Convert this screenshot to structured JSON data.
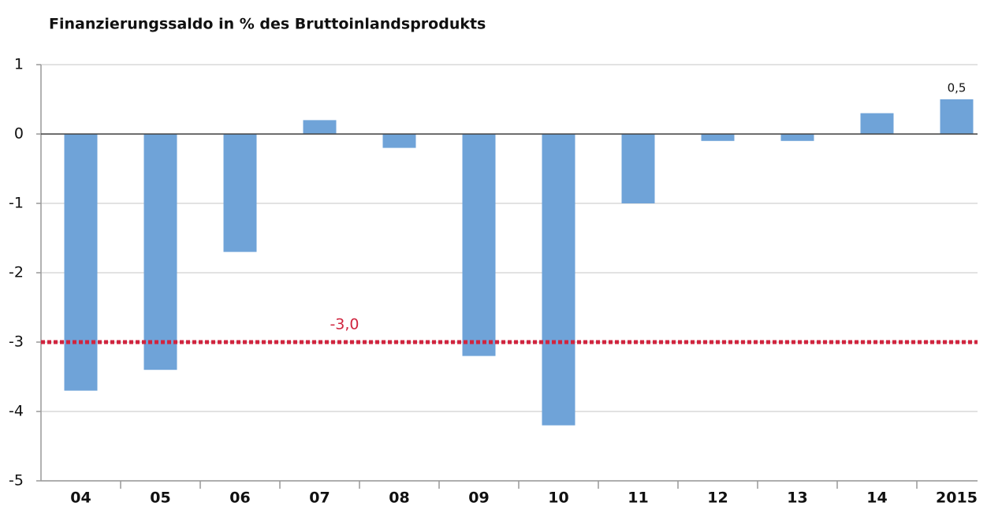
{
  "chart_data": {
    "type": "bar",
    "title": "Finanzierungssaldo in % des Bruttoinlandsprodukts",
    "categories": [
      "04",
      "05",
      "06",
      "07",
      "08",
      "09",
      "10",
      "11",
      "12",
      "13",
      "14",
      "2015"
    ],
    "values": [
      -3.7,
      -3.4,
      -1.7,
      0.2,
      -0.2,
      -3.2,
      -4.2,
      -1.0,
      -0.1,
      -0.1,
      0.3,
      0.5
    ],
    "value_labels": [
      null,
      null,
      null,
      null,
      null,
      null,
      null,
      null,
      null,
      null,
      null,
      "0,5"
    ],
    "color": "#6fa3d8",
    "ylim": [
      -5,
      1
    ],
    "yticks": [
      -5,
      -4,
      -3,
      -2,
      -1,
      0,
      1
    ],
    "grid": true,
    "reference_line": {
      "value": -3,
      "label": "-3,0",
      "color": "#d0253f"
    }
  }
}
